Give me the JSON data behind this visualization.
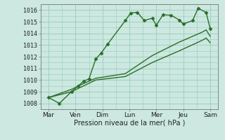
{
  "xlabel": "Pression niveau de la mer( hPa )",
  "bg_color": "#cce8e0",
  "grid_color": "#99ccbb",
  "line_color": "#2a6e2a",
  "ylim": [
    1007.5,
    1016.5
  ],
  "xtick_labels": [
    "Mar",
    "Ven",
    "Dim",
    "Lun",
    "Mer",
    "Jeu",
    "Sam"
  ],
  "xtick_positions": [
    0,
    1,
    2,
    3,
    4,
    5,
    6
  ],
  "series1_x": [
    0.0,
    0.4,
    0.85,
    1.1,
    1.3,
    1.5,
    1.75,
    1.95,
    2.2,
    2.85,
    3.05,
    3.3,
    3.55,
    3.85,
    4.0,
    4.25,
    4.55,
    4.85,
    5.0,
    5.35,
    5.55,
    5.85,
    6.0
  ],
  "series1_y": [
    1008.5,
    1008.0,
    1009.0,
    1009.5,
    1009.9,
    1010.1,
    1011.8,
    1012.3,
    1013.1,
    1015.1,
    1015.75,
    1015.8,
    1015.1,
    1015.3,
    1014.7,
    1015.6,
    1015.55,
    1015.15,
    1014.8,
    1015.1,
    1016.15,
    1015.8,
    1014.4
  ],
  "series2_x": [
    0.0,
    0.85,
    1.3,
    1.75,
    2.85,
    3.85,
    4.85,
    5.7,
    5.85,
    6.0
  ],
  "series2_y": [
    1008.5,
    1009.0,
    1009.5,
    1010.0,
    1010.3,
    1011.5,
    1012.5,
    1013.4,
    1013.6,
    1013.2
  ],
  "series3_x": [
    0.0,
    0.85,
    1.3,
    1.75,
    2.85,
    3.85,
    4.85,
    5.7,
    5.85,
    6.0
  ],
  "series3_y": [
    1008.5,
    1009.2,
    1009.7,
    1010.15,
    1010.55,
    1012.1,
    1013.25,
    1014.1,
    1014.3,
    1013.75
  ],
  "markersize": 2.5,
  "linewidth": 1.0
}
